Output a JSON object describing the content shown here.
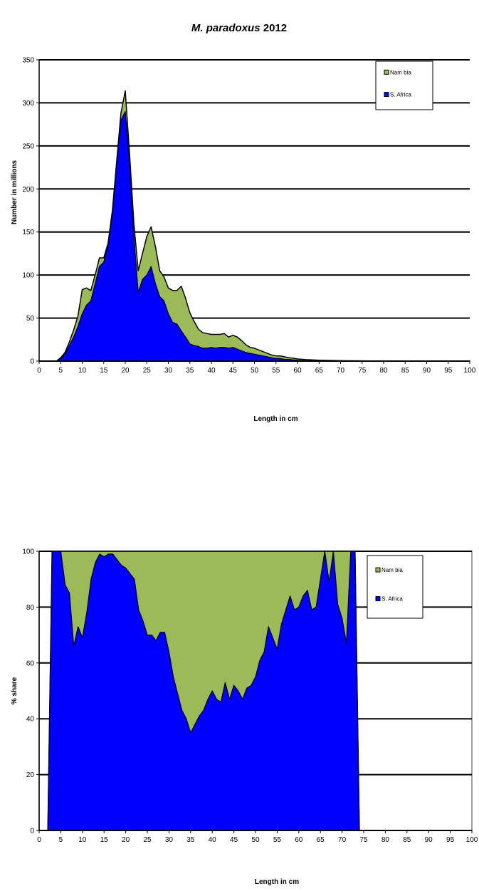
{
  "title_italic": "M. paradoxus",
  "title_year": "2012",
  "colors": {
    "namibia": "#9bbb59",
    "south_africa": "#0000ff",
    "outline": "#000000",
    "grid": "#000000"
  },
  "chart_data": [
    {
      "type": "area",
      "stacked": true,
      "xlabel": "Length in cm",
      "ylabel": "Number in millions",
      "ylim": [
        0,
        350
      ],
      "yticks": [
        "0",
        "50",
        "100",
        "150",
        "200",
        "250",
        "300",
        "350"
      ],
      "xlim": [
        0,
        100
      ],
      "xticks": [
        "0",
        "5",
        "10",
        "15",
        "20",
        "25",
        "30",
        "35",
        "40",
        "45",
        "50",
        "55",
        "60",
        "65",
        "70",
        "75",
        "80",
        "85",
        "90",
        "95",
        "100"
      ],
      "grid": "horizontal",
      "legend": "top-right",
      "x": [
        0,
        4,
        5,
        6,
        7,
        8,
        9,
        10,
        11,
        12,
        13,
        14,
        15,
        16,
        17,
        18,
        19,
        20,
        21,
        22,
        23,
        24,
        25,
        26,
        27,
        28,
        29,
        30,
        31,
        32,
        33,
        34,
        35,
        36,
        37,
        38,
        39,
        40,
        41,
        42,
        43,
        44,
        45,
        46,
        47,
        48,
        49,
        50,
        51,
        52,
        53,
        54,
        55,
        56,
        57,
        58,
        59,
        60,
        62,
        65,
        70,
        80,
        100
      ],
      "series": [
        {
          "name": "S. Africa",
          "values": [
            0,
            0,
            3,
            8,
            18,
            28,
            40,
            55,
            65,
            70,
            90,
            110,
            115,
            135,
            170,
            230,
            280,
            290,
            230,
            145,
            80,
            95,
            100,
            110,
            90,
            75,
            70,
            55,
            45,
            43,
            35,
            28,
            20,
            18,
            17,
            15,
            15,
            16,
            15,
            16,
            16,
            15,
            16,
            14,
            12,
            10,
            9,
            8,
            7,
            6,
            5,
            4,
            3,
            3,
            2,
            2,
            1.5,
            1,
            0.5,
            0.3,
            0.1,
            0,
            0
          ]
        },
        {
          "name": "Nam bia",
          "values": [
            0,
            0,
            1,
            2,
            4,
            8,
            12,
            28,
            20,
            12,
            10,
            10,
            5,
            2,
            5,
            2,
            8,
            24,
            10,
            15,
            25,
            30,
            45,
            46,
            43,
            30,
            28,
            30,
            37,
            39,
            52,
            45,
            36,
            28,
            20,
            18,
            17,
            15,
            16,
            15,
            16,
            13,
            14,
            14,
            12,
            9,
            7,
            7,
            6,
            5,
            4,
            3,
            3,
            3,
            3,
            2,
            2,
            1.5,
            1.2,
            0.8,
            0.4,
            0.1,
            0
          ]
        }
      ]
    },
    {
      "type": "area",
      "stacked": true,
      "xlabel": "Length in cm",
      "ylabel": "% share",
      "ylim": [
        0,
        100
      ],
      "yticks": [
        "0",
        "20",
        "40",
        "60",
        "80",
        "100"
      ],
      "xlim": [
        0,
        100
      ],
      "xticks": [
        "0",
        "5",
        "10",
        "15",
        "20",
        "25",
        "30",
        "35",
        "40",
        "45",
        "50",
        "55",
        "60",
        "65",
        "70",
        "75",
        "80",
        "85",
        "90",
        "95",
        "100"
      ],
      "grid": "horizontal",
      "legend": "top-right",
      "x": [
        0,
        2,
        3,
        5,
        6,
        7,
        8,
        9,
        10,
        11,
        12,
        13,
        14,
        15,
        16,
        17,
        18,
        19,
        20,
        21,
        22,
        23,
        24,
        25,
        26,
        27,
        28,
        29,
        30,
        31,
        32,
        33,
        34,
        35,
        36,
        37,
        38,
        39,
        40,
        41,
        42,
        43,
        44,
        45,
        46,
        47,
        48,
        49,
        50,
        51,
        52,
        53,
        54,
        55,
        56,
        57,
        58,
        59,
        60,
        61,
        62,
        63,
        64,
        65,
        66,
        67,
        68,
        69,
        70,
        71,
        72,
        73,
        74,
        75,
        100
      ],
      "series": [
        {
          "name": "S. Africa",
          "values": [
            0,
            0,
            100,
            100,
            88,
            85,
            66,
            73,
            69,
            78,
            90,
            96,
            99,
            98,
            99,
            99,
            97,
            95,
            94,
            92,
            90,
            79,
            75,
            70,
            70,
            68,
            71,
            71,
            64,
            55,
            49,
            43,
            40,
            35,
            38,
            41,
            43,
            47,
            50,
            47,
            46,
            53,
            47,
            52,
            50,
            47,
            51,
            52,
            55,
            61,
            64,
            73,
            69,
            65,
            74,
            79,
            84,
            79,
            80,
            84,
            86,
            79,
            80,
            90,
            100,
            89,
            100,
            81,
            76,
            67,
            100,
            100,
            0,
            0,
            0
          ]
        },
        {
          "name": "Nam bia",
          "values": [
            0,
            0,
            0,
            0,
            12,
            15,
            34,
            27,
            31,
            22,
            10,
            4,
            1,
            2,
            1,
            1,
            3,
            5,
            6,
            8,
            10,
            21,
            25,
            30,
            30,
            32,
            29,
            29,
            36,
            45,
            51,
            57,
            60,
            65,
            62,
            59,
            57,
            53,
            50,
            53,
            54,
            47,
            53,
            48,
            50,
            53,
            49,
            48,
            45,
            39,
            36,
            27,
            31,
            35,
            26,
            21,
            16,
            21,
            20,
            16,
            14,
            21,
            20,
            10,
            0,
            11,
            0,
            19,
            24,
            33,
            0,
            0,
            0,
            0,
            0
          ]
        }
      ]
    }
  ],
  "legend_items": [
    "Nam bia",
    "S. Africa"
  ]
}
